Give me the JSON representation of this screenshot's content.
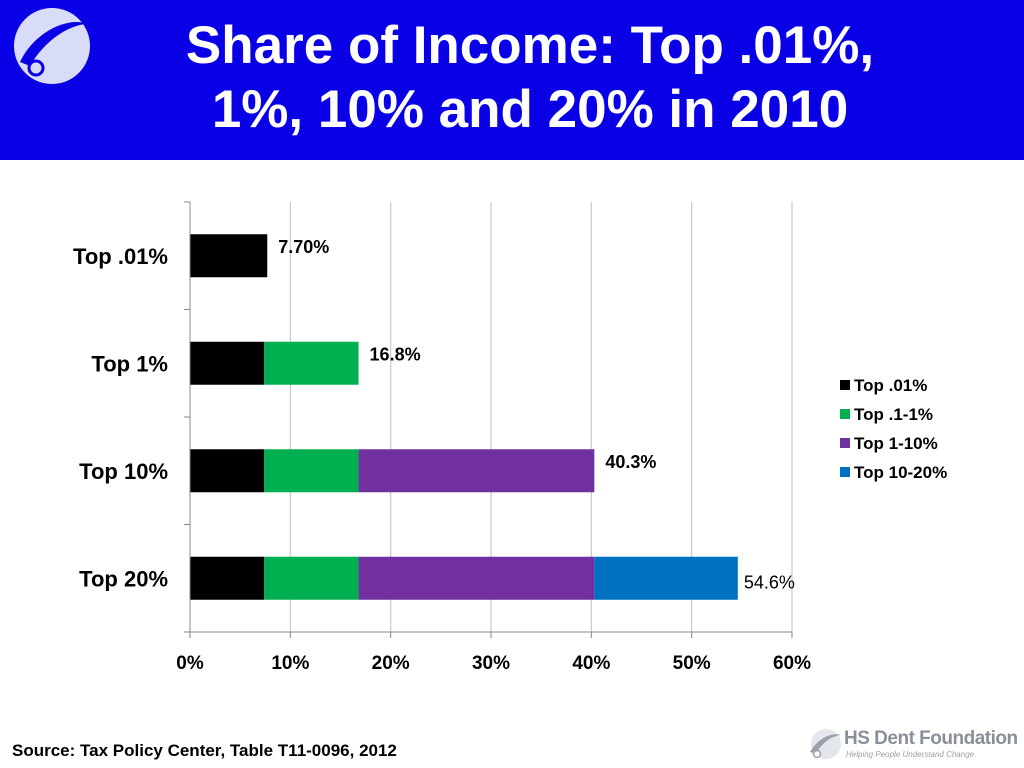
{
  "header": {
    "title": "Share of Income: Top .01%,\n1%, 10% and 20% in 2010"
  },
  "footer": {
    "source": "Source: Tax Policy Center, Table T11-0096, 2012",
    "brand": "HS Dent Foundation",
    "tagline": "Helping People Understand Change"
  },
  "colors": {
    "header_bg": "#0a00e6",
    "top_001": "#000000",
    "top_01_1": "#00b050",
    "top_1_10": "#7030a0",
    "top_10_20": "#0070c0"
  },
  "chart_data": {
    "type": "bar",
    "orientation": "horizontal",
    "stacked": true,
    "categories": [
      "Top .01%",
      "Top 1%",
      "Top 10%",
      "Top 20%"
    ],
    "series": [
      {
        "name": "Top .01%",
        "color": "#000000",
        "values": [
          7.7,
          7.4,
          7.4,
          7.4
        ]
      },
      {
        "name": "Top .1-1%",
        "color": "#00b050",
        "values": [
          0,
          9.4,
          9.4,
          9.4
        ]
      },
      {
        "name": "Top 1-10%",
        "color": "#7030a0",
        "values": [
          0,
          0,
          23.5,
          23.5
        ]
      },
      {
        "name": "Top 10-20%",
        "color": "#0070c0",
        "values": [
          0,
          0,
          0,
          14.3
        ]
      }
    ],
    "totals": [
      7.7,
      16.8,
      40.3,
      54.6
    ],
    "data_labels": [
      "7.70%",
      "16.8%",
      "40.3%",
      "54.6%"
    ],
    "x_ticks": [
      "0%",
      "10%",
      "20%",
      "30%",
      "40%",
      "50%",
      "60%"
    ],
    "xlim": [
      0,
      60
    ],
    "grid": true,
    "legend_position": "right"
  }
}
